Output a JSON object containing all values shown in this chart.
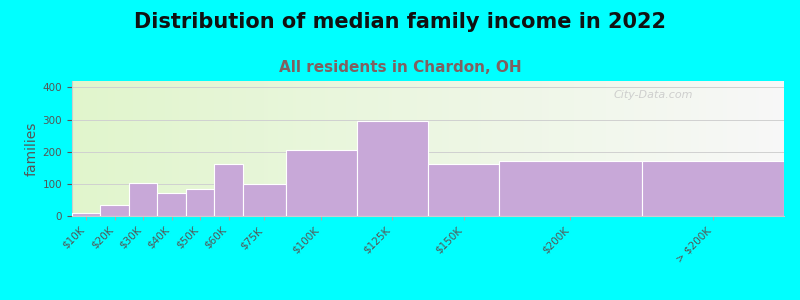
{
  "title": "Distribution of median family income in 2022",
  "subtitle": "All residents in Chardon, OH",
  "ylabel": "families",
  "categories": [
    "$10K",
    "$20K",
    "$30K",
    "$40K",
    "$50K",
    "$60K",
    "$75K",
    "$100K",
    "$125K",
    "$150K",
    "$200K",
    "> $200K"
  ],
  "values": [
    10,
    35,
    103,
    73,
    85,
    163,
    100,
    205,
    297,
    163,
    170,
    170
  ],
  "bar_lefts": [
    0,
    10,
    20,
    30,
    40,
    50,
    60,
    75,
    100,
    125,
    150,
    200
  ],
  "bar_widths": [
    10,
    10,
    10,
    10,
    10,
    10,
    15,
    25,
    25,
    25,
    50,
    50
  ],
  "bar_color": "#c8a8d8",
  "ylim": [
    0,
    420
  ],
  "yticks": [
    0,
    100,
    200,
    300,
    400
  ],
  "tick_positions": [
    5,
    15,
    25,
    35,
    45,
    55,
    67.5,
    87.5,
    112.5,
    137.5,
    175,
    225
  ],
  "background_outer": "#00ffff",
  "grid_color": "#d0d0d0",
  "title_fontsize": 15,
  "subtitle_fontsize": 11,
  "subtitle_color": "#806060",
  "ylabel_fontsize": 10,
  "tick_fontsize": 7.5,
  "watermark_text": "City-Data.com",
  "watermark_color": "#c8c8c8",
  "xlim": [
    0,
    250
  ]
}
